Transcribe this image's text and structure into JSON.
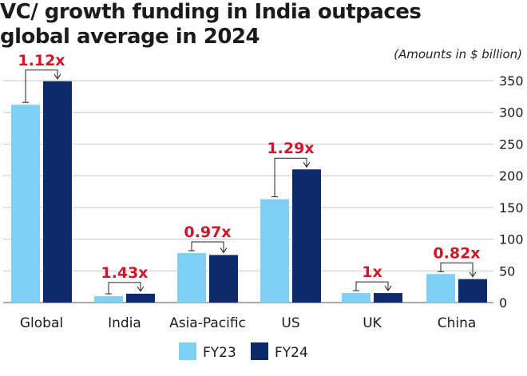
{
  "chart_data": {
    "type": "bar",
    "title": "VC/ growth funding in India outpaces global average in 2024",
    "subtitle": "(Amounts in $ billion)",
    "categories": [
      "Global",
      "India",
      "Asia-Pacific",
      "US",
      "UK",
      "China"
    ],
    "series": [
      {
        "name": "FY23",
        "color": "#7fd0f5",
        "values": [
          312,
          10,
          78,
          163,
          15,
          45
        ]
      },
      {
        "name": "FY24",
        "color": "#0f2a6b",
        "values": [
          349,
          14,
          75,
          210,
          15,
          37
        ]
      }
    ],
    "multipliers": [
      "1.12x",
      "1.43x",
      "0.97x",
      "1.29x",
      "1x",
      "0.82x"
    ],
    "yticks": [
      0,
      50,
      100,
      150,
      200,
      250,
      300,
      350
    ],
    "ylim": [
      0,
      350
    ],
    "grid": true,
    "legend_position": "bottom-center"
  }
}
